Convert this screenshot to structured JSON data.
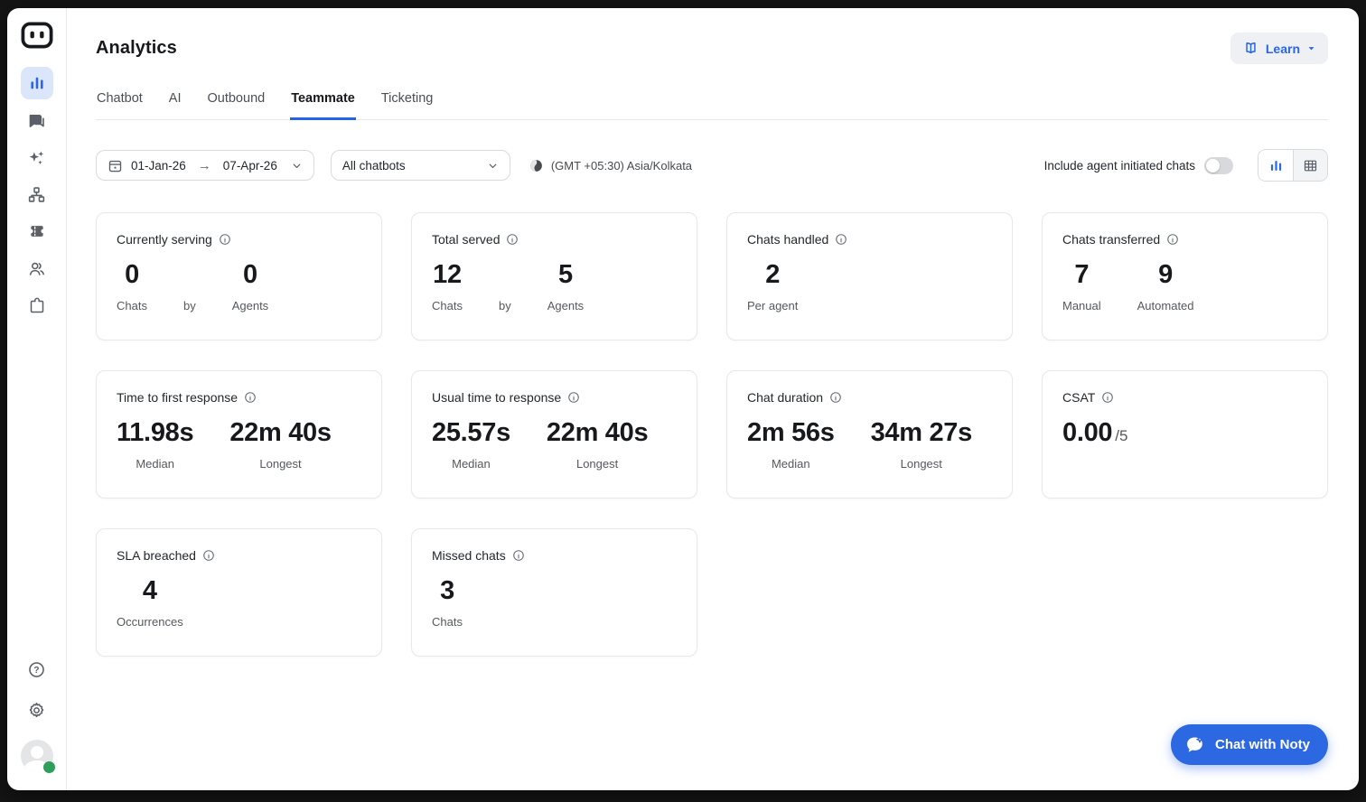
{
  "colors": {
    "accent_blue": "#2B66E3",
    "tab_underline_blue": "#2563EB",
    "chat_button_blue": "#2D68E3",
    "online_green": "#2E9E5B",
    "sidebar_active_bg": "#DCE6FB"
  },
  "sidebar": {
    "icons": [
      "bot-logo",
      "analytics",
      "conversations",
      "ai-sparkles",
      "workflows",
      "ticketing",
      "contacts",
      "integrations",
      "help",
      "settings",
      "profile"
    ]
  },
  "header": {
    "title": "Analytics",
    "learn_label": "Learn"
  },
  "tabs": [
    {
      "id": "chatbot",
      "label": "Chatbot",
      "active": false
    },
    {
      "id": "ai",
      "label": "AI",
      "active": false
    },
    {
      "id": "outbound",
      "label": "Outbound",
      "active": false
    },
    {
      "id": "teammate",
      "label": "Teammate",
      "active": true
    },
    {
      "id": "ticketing",
      "label": "Ticketing",
      "active": false
    }
  ],
  "filters": {
    "date_from": "01-Jan-26",
    "date_to": "07-Apr-26",
    "chatbot_select": "All chatbots",
    "timezone": "(GMT +05:30) Asia/Kolkata",
    "toggle_label": "Include agent initiated chats",
    "toggle_on": false
  },
  "cards": [
    {
      "title": "Currently serving",
      "stats": [
        {
          "value": "0",
          "label": "Chats"
        },
        {
          "value": "",
          "label": "by"
        },
        {
          "value": "0",
          "label": "Agents"
        }
      ]
    },
    {
      "title": "Total served",
      "stats": [
        {
          "value": "12",
          "label": "Chats"
        },
        {
          "value": "",
          "label": "by"
        },
        {
          "value": "5",
          "label": "Agents"
        }
      ]
    },
    {
      "title": "Chats handled",
      "stats": [
        {
          "value": "2",
          "label": "Per agent"
        }
      ]
    },
    {
      "title": "Chats transferred",
      "stats": [
        {
          "value": "7",
          "label": "Manual"
        },
        {
          "value": "9",
          "label": "Automated"
        }
      ]
    },
    {
      "title": "Time to first response",
      "stats": [
        {
          "value": "11.98s",
          "label": "Median"
        },
        {
          "value": "22m 40s",
          "label": "Longest"
        }
      ]
    },
    {
      "title": "Usual time to response",
      "stats": [
        {
          "value": "25.57s",
          "label": "Median"
        },
        {
          "value": "22m 40s",
          "label": "Longest"
        }
      ]
    },
    {
      "title": "Chat duration",
      "stats": [
        {
          "value": "2m 56s",
          "label": "Median"
        },
        {
          "value": "34m 27s",
          "label": "Longest"
        }
      ]
    },
    {
      "title": "CSAT",
      "stats": [
        {
          "value": "0.00",
          "suffix": "/5",
          "label": ""
        }
      ]
    },
    {
      "title": "SLA breached",
      "stats": [
        {
          "value": "4",
          "label": "Occurrences"
        }
      ]
    },
    {
      "title": "Missed chats",
      "stats": [
        {
          "value": "3",
          "label": "Chats"
        }
      ]
    }
  ],
  "chat_widget": {
    "label": "Chat with Noty"
  }
}
